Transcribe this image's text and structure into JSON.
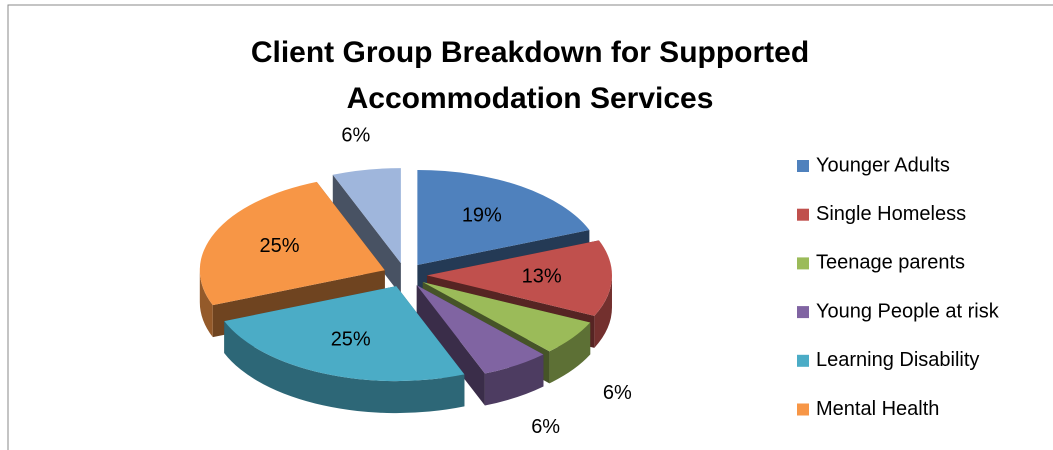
{
  "chart_data": {
    "type": "pie3d",
    "title": "Client Group Breakdown for Supported Accommodation Services",
    "categories": [
      "Younger Adults",
      "Single Homeless",
      "Teenage parents",
      "Young People at risk",
      "Learning Disability",
      "Mental Health",
      null
    ],
    "values": [
      19,
      13,
      6,
      6,
      25,
      25,
      6
    ],
    "value_labels": [
      "19%",
      "13%",
      "6%",
      "6%",
      "25%",
      "25%",
      "6%"
    ],
    "colors": [
      "#4f81bd",
      "#c0504d",
      "#9bbb59",
      "#8064a2",
      "#4bacc6",
      "#f79646",
      "#9fb6dc"
    ],
    "legend": "right"
  }
}
